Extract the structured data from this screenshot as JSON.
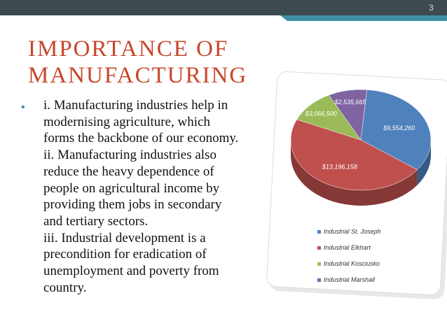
{
  "slide_number": "3",
  "title_lines": [
    "IMPORTANCE OF",
    "MANUFACTURING"
  ],
  "body_lines": [
    "i. Manufacturing industries help in",
    "modernising agriculture, which",
    "forms the backbone of our economy.",
    "ii. Manufacturing industries also",
    "reduce the heavy dependence of",
    "people on agricultural income by",
    "providing them jobs in secondary",
    "and tertiary sectors.",
    "iii. Industrial development is a",
    "precondition for eradication of",
    "unemployment and poverty from",
    "country."
  ],
  "chart_data": {
    "type": "pie",
    "categories": [
      "Industrial St. Joseph",
      "Industrial Elkhart",
      "Industrial Kosciusko",
      "Industrial Marshall"
    ],
    "values": [
      9554260,
      13196158,
      3066500,
      2535665
    ],
    "value_labels": [
      "$9,554,260",
      "$13,196,158",
      "$3,066,500",
      "$2,535,665"
    ],
    "colors": [
      "#4f81bd",
      "#c0504d",
      "#9bbb59",
      "#8064a2"
    ]
  }
}
